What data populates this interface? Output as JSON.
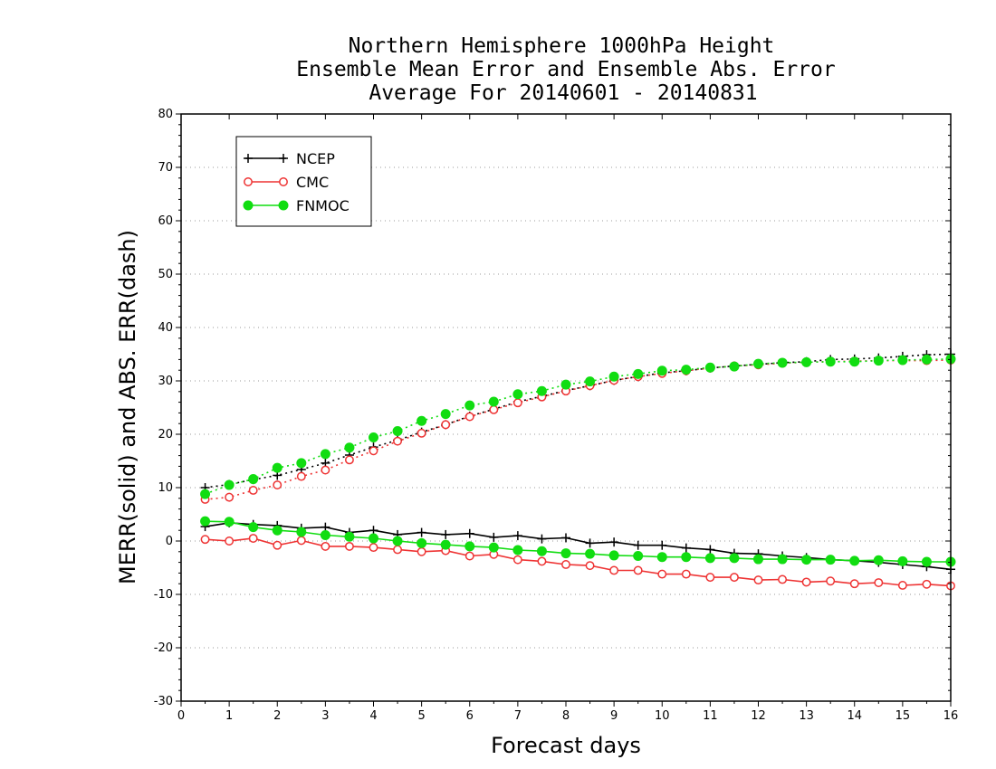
{
  "chart_data": {
    "type": "line",
    "title_lines": [
      "Northern Hemisphere 1000hPa Height",
      "Ensemble Mean Error and Ensemble Abs. Error",
      "Average For 20140601 - 20140831"
    ],
    "xlabel": "Forecast days",
    "ylabel": "MERR(solid) and ABS. ERR(dash)",
    "xlim": [
      0,
      16
    ],
    "ylim": [
      -30,
      80
    ],
    "xticks": [
      "0",
      "1",
      "2",
      "3",
      "4",
      "5",
      "6",
      "7",
      "8",
      "9",
      "10",
      "11",
      "12",
      "13",
      "14",
      "15",
      "16"
    ],
    "yticks": [
      "80",
      "70",
      "60",
      "50",
      "40",
      "30",
      "20",
      "10",
      "0",
      "-10",
      "-20",
      "-30"
    ],
    "grid": "horizontal dotted",
    "legend_position": "top-left",
    "x": [
      0.5,
      1,
      1.5,
      2,
      2.5,
      3,
      3.5,
      4,
      4.5,
      5,
      5.5,
      6,
      6.5,
      7,
      7.5,
      8,
      8.5,
      9,
      9.5,
      10,
      10.5,
      11,
      11.5,
      12,
      12.5,
      13,
      13.5,
      14,
      14.5,
      15,
      15.5,
      16
    ],
    "series": [
      {
        "name": "NCEP",
        "color": "#000000",
        "marker": "plus",
        "merr": [
          2.7,
          3.4,
          3.1,
          2.9,
          2.4,
          2.6,
          1.6,
          2.0,
          1.2,
          1.6,
          1.2,
          1.4,
          0.7,
          1.0,
          0.4,
          0.6,
          -0.4,
          -0.2,
          -0.8,
          -0.8,
          -1.3,
          -1.6,
          -2.3,
          -2.4,
          -2.8,
          -3.1,
          -3.5,
          -3.7,
          -4.0,
          -4.4,
          -4.8,
          -5.3
        ],
        "abs_err": [
          10.0,
          10.6,
          11.5,
          12.3,
          13.4,
          14.6,
          16.1,
          17.6,
          18.9,
          20.4,
          21.8,
          23.4,
          24.7,
          26.1,
          27.1,
          28.2,
          29.1,
          30.1,
          30.8,
          31.5,
          31.9,
          32.4,
          32.8,
          33.1,
          33.4,
          33.6,
          34.0,
          34.1,
          34.3,
          34.6,
          34.9,
          35.0
        ]
      },
      {
        "name": "CMC",
        "color": "#ee3333",
        "marker": "open-circle",
        "merr": [
          0.3,
          0.0,
          0.5,
          -0.8,
          0.1,
          -1.0,
          -1.0,
          -1.2,
          -1.6,
          -2.0,
          -1.8,
          -2.8,
          -2.5,
          -3.5,
          -3.8,
          -4.4,
          -4.6,
          -5.5,
          -5.5,
          -6.2,
          -6.2,
          -6.8,
          -6.8,
          -7.3,
          -7.2,
          -7.7,
          -7.5,
          -8.0,
          -7.8,
          -8.3,
          -8.1,
          -8.4
        ],
        "abs_err": [
          7.8,
          8.2,
          9.5,
          10.5,
          12.1,
          13.3,
          15.2,
          16.9,
          18.7,
          20.2,
          21.8,
          23.3,
          24.6,
          25.9,
          27.0,
          28.1,
          29.1,
          30.1,
          30.8,
          31.4,
          31.9,
          32.4,
          32.8,
          33.0,
          33.3,
          33.5,
          33.6,
          33.7,
          33.8,
          33.8,
          33.8,
          33.9
        ]
      },
      {
        "name": "FNMOC",
        "color": "#11dd11",
        "marker": "filled-circle",
        "merr": [
          3.7,
          3.6,
          2.6,
          2.0,
          1.7,
          1.1,
          0.8,
          0.5,
          0.0,
          -0.4,
          -0.7,
          -1.0,
          -1.2,
          -1.7,
          -1.9,
          -2.3,
          -2.4,
          -2.7,
          -2.8,
          -3.0,
          -3.0,
          -3.2,
          -3.2,
          -3.4,
          -3.4,
          -3.5,
          -3.5,
          -3.7,
          -3.6,
          -3.8,
          -3.9,
          -3.9
        ],
        "abs_err": [
          8.8,
          10.5,
          11.6,
          13.7,
          14.6,
          16.3,
          17.5,
          19.4,
          20.6,
          22.5,
          23.8,
          25.4,
          26.1,
          27.5,
          28.1,
          29.3,
          29.9,
          30.8,
          31.3,
          31.9,
          32.1,
          32.5,
          32.7,
          33.2,
          33.4,
          33.5,
          33.6,
          33.6,
          33.8,
          33.9,
          34.0,
          34.1
        ]
      }
    ]
  }
}
